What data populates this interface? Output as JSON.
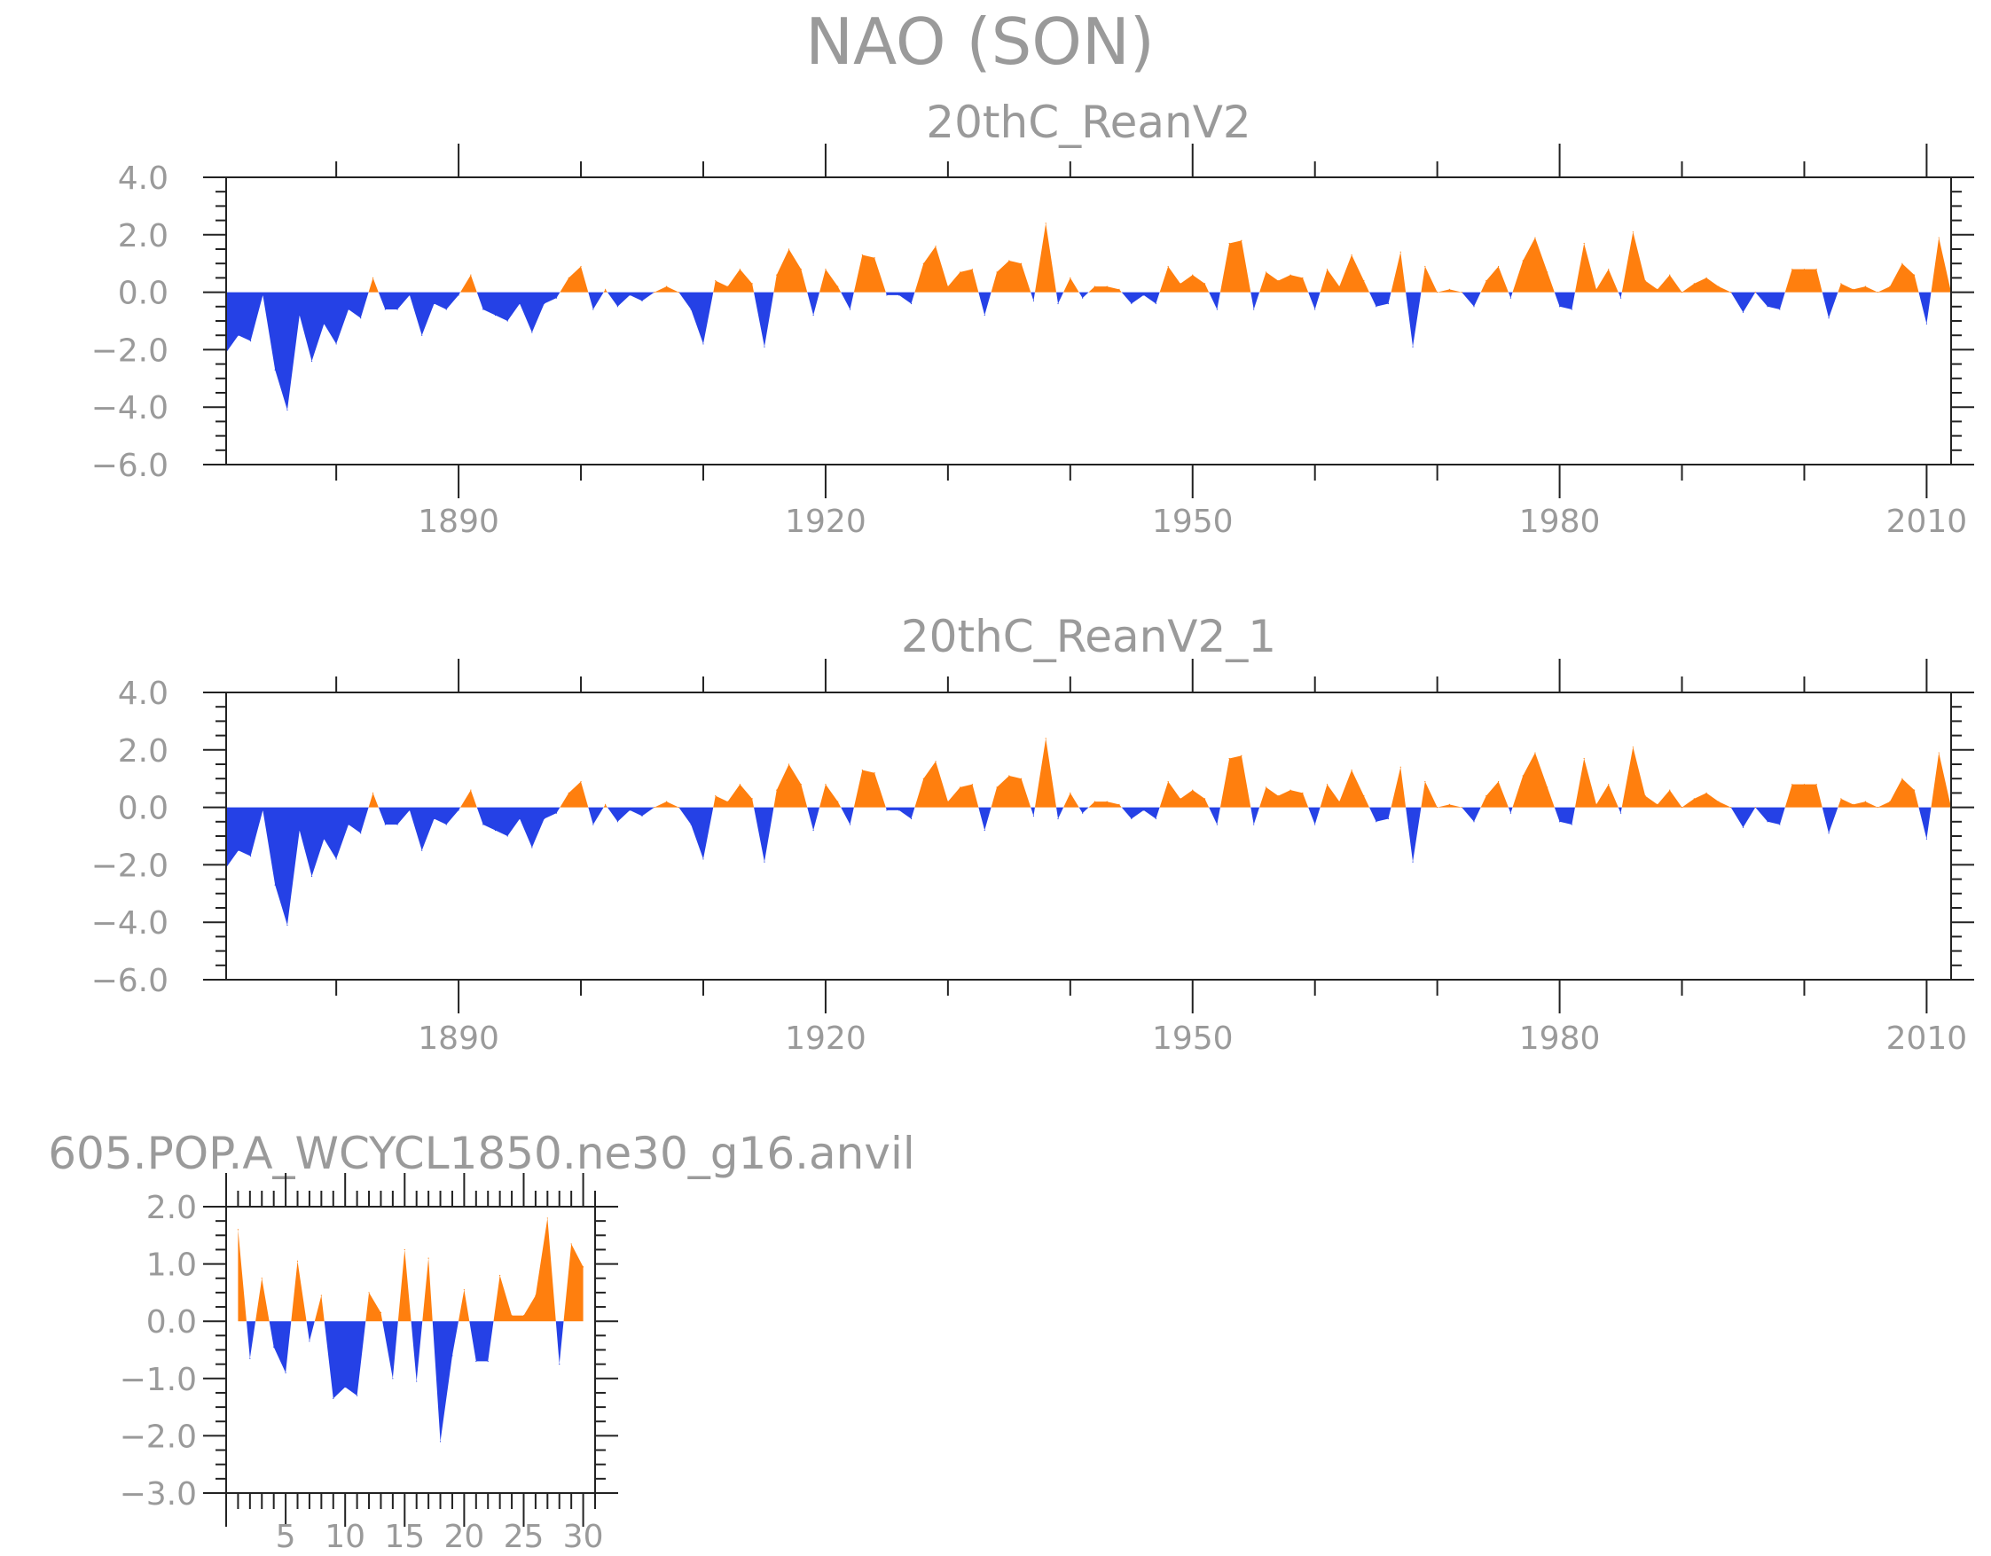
{
  "figure_title": "NAO (SON)",
  "colors": {
    "positive": "#ff7f0e",
    "negative": "#2541e6",
    "axis": "#222222",
    "text": "#9a9a9a"
  },
  "chart_data": [
    {
      "type": "area",
      "title": "20thC_ReanV2",
      "xlabel": "",
      "ylabel": "",
      "xlim": [
        1871,
        2012
      ],
      "ylim": [
        -6.0,
        4.0
      ],
      "yticks": [
        4.0,
        2.0,
        0.0,
        -2.0,
        -4.0,
        -6.0
      ],
      "ytick_labels": [
        "4.0",
        "2.0",
        "0.0",
        "−2.0",
        "−4.0",
        "−6.0"
      ],
      "xticks": [
        1890,
        1920,
        1950,
        1980,
        2010
      ],
      "xtick_labels": [
        "1890",
        "1920",
        "1950",
        "1980",
        "2010"
      ],
      "fill": "positive orange / negative blue",
      "x_start": 1871,
      "values": [
        -2.1,
        -1.5,
        -1.7,
        -0.1,
        -2.7,
        -4.1,
        -0.8,
        -2.4,
        -1.1,
        -1.8,
        -0.6,
        -0.9,
        0.5,
        -0.6,
        -0.6,
        -0.1,
        -1.5,
        -0.4,
        -0.6,
        -0.1,
        0.6,
        -0.6,
        -0.8,
        -1.0,
        -0.4,
        -1.4,
        -0.4,
        -0.2,
        0.5,
        0.9,
        -0.6,
        0.1,
        -0.5,
        -0.1,
        -0.3,
        0.0,
        0.2,
        0.0,
        -0.6,
        -1.8,
        0.4,
        0.2,
        0.8,
        0.3,
        -1.9,
        0.6,
        1.5,
        0.8,
        -0.8,
        0.8,
        0.2,
        -0.6,
        1.3,
        1.2,
        -0.1,
        -0.1,
        -0.4,
        1.0,
        1.6,
        0.2,
        0.7,
        0.8,
        -0.8,
        0.7,
        1.1,
        1.0,
        -0.3,
        2.4,
        -0.4,
        0.5,
        -0.2,
        0.2,
        0.2,
        0.1,
        -0.4,
        -0.1,
        -0.4,
        0.9,
        0.3,
        0.6,
        0.3,
        -0.6,
        1.7,
        1.8,
        -0.6,
        0.7,
        0.4,
        0.6,
        0.5,
        -0.6,
        0.8,
        0.2,
        1.3,
        0.4,
        -0.5,
        -0.4,
        1.4,
        -1.9,
        0.9,
        0.0,
        0.1,
        0.0,
        -0.5,
        0.4,
        0.9,
        -0.2,
        1.1,
        1.9,
        0.7,
        -0.5,
        -0.6,
        1.7,
        0.1,
        0.8,
        -0.2,
        2.1,
        0.4,
        0.1,
        0.6,
        0.0,
        0.3,
        0.5,
        0.2,
        0.0,
        -0.7,
        0.0,
        -0.5,
        -0.6,
        0.8,
        0.8,
        0.8,
        -0.9,
        0.3,
        0.1,
        0.2,
        0.0,
        0.2,
        1.0,
        0.6,
        -1.1,
        1.9,
        0.0
      ]
    },
    {
      "type": "area",
      "title": "20thC_ReanV2_1",
      "xlabel": "",
      "ylabel": "",
      "xlim": [
        1871,
        2012
      ],
      "ylim": [
        -6.0,
        4.0
      ],
      "yticks": [
        4.0,
        2.0,
        0.0,
        -2.0,
        -4.0,
        -6.0
      ],
      "ytick_labels": [
        "4.0",
        "2.0",
        "0.0",
        "−2.0",
        "−4.0",
        "−6.0"
      ],
      "xticks": [
        1890,
        1920,
        1950,
        1980,
        2010
      ],
      "xtick_labels": [
        "1890",
        "1920",
        "1950",
        "1980",
        "2010"
      ],
      "fill": "positive orange / negative blue",
      "x_start": 1871,
      "values": [
        -2.1,
        -1.5,
        -1.7,
        -0.1,
        -2.7,
        -4.1,
        -0.8,
        -2.4,
        -1.1,
        -1.8,
        -0.6,
        -0.9,
        0.5,
        -0.6,
        -0.6,
        -0.1,
        -1.5,
        -0.4,
        -0.6,
        -0.1,
        0.6,
        -0.6,
        -0.8,
        -1.0,
        -0.4,
        -1.4,
        -0.4,
        -0.2,
        0.5,
        0.9,
        -0.6,
        0.1,
        -0.5,
        -0.1,
        -0.3,
        0.0,
        0.2,
        0.0,
        -0.6,
        -1.8,
        0.4,
        0.2,
        0.8,
        0.3,
        -1.9,
        0.6,
        1.5,
        0.8,
        -0.8,
        0.8,
        0.2,
        -0.6,
        1.3,
        1.2,
        -0.1,
        -0.1,
        -0.4,
        1.0,
        1.6,
        0.2,
        0.7,
        0.8,
        -0.8,
        0.7,
        1.1,
        1.0,
        -0.3,
        2.4,
        -0.4,
        0.5,
        -0.2,
        0.2,
        0.2,
        0.1,
        -0.4,
        -0.1,
        -0.4,
        0.9,
        0.3,
        0.6,
        0.3,
        -0.6,
        1.7,
        1.8,
        -0.6,
        0.7,
        0.4,
        0.6,
        0.5,
        -0.6,
        0.8,
        0.2,
        1.3,
        0.4,
        -0.5,
        -0.4,
        1.4,
        -1.9,
        0.9,
        0.0,
        0.1,
        0.0,
        -0.5,
        0.4,
        0.9,
        -0.2,
        1.1,
        1.9,
        0.7,
        -0.5,
        -0.6,
        1.7,
        0.1,
        0.8,
        -0.2,
        2.1,
        0.4,
        0.1,
        0.6,
        0.0,
        0.3,
        0.5,
        0.2,
        0.0,
        -0.7,
        0.0,
        -0.5,
        -0.6,
        0.8,
        0.8,
        0.8,
        -0.9,
        0.3,
        0.1,
        0.2,
        0.0,
        0.2,
        1.0,
        0.6,
        -1.1,
        1.9,
        0.0
      ]
    },
    {
      "type": "area",
      "title": "605.POP.A_WCYCL1850.ne30_g16.anvil",
      "xlabel": "",
      "ylabel": "",
      "xlim": [
        0,
        31
      ],
      "ylim": [
        -3.0,
        2.0
      ],
      "yticks": [
        2.0,
        1.0,
        0.0,
        -1.0,
        -2.0,
        -3.0
      ],
      "ytick_labels": [
        "2.0",
        "1.0",
        "0.0",
        "−1.0",
        "−2.0",
        "−3.0"
      ],
      "xticks": [
        5,
        10,
        15,
        20,
        25,
        30
      ],
      "xtick_labels": [
        "5",
        "10",
        "15",
        "20",
        "25",
        "30"
      ],
      "fill": "positive orange / negative blue",
      "x_start": 1,
      "values": [
        1.6,
        -0.65,
        0.75,
        -0.45,
        -0.9,
        1.05,
        -0.35,
        0.45,
        -1.35,
        -1.15,
        -1.3,
        0.5,
        0.15,
        -1.0,
        1.25,
        -1.05,
        1.1,
        -2.1,
        -0.6,
        0.55,
        -0.7,
        -0.7,
        0.8,
        0.1,
        0.1,
        0.45,
        1.8,
        -0.75,
        1.35,
        0.95
      ]
    }
  ]
}
